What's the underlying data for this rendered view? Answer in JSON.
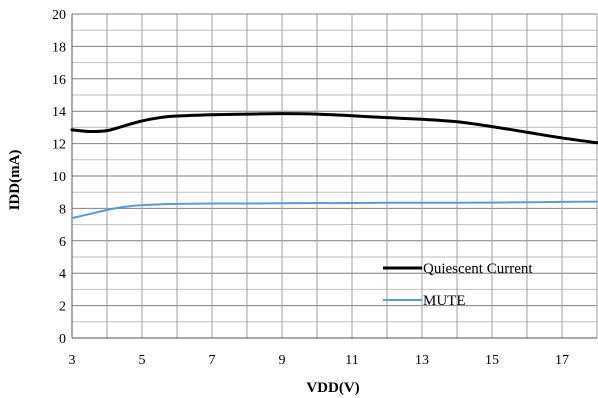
{
  "chart_data": {
    "type": "line",
    "xlabel": "VDD(V)",
    "ylabel": "IDD(mA)",
    "xlim": [
      3,
      18
    ],
    "ylim": [
      0,
      20
    ],
    "x_ticks": [
      "3",
      "5",
      "7",
      "9",
      "11",
      "13",
      "15",
      "17"
    ],
    "y_ticks": [
      "0",
      "2",
      "4",
      "6",
      "8",
      "10",
      "12",
      "14",
      "16",
      "18",
      "20"
    ],
    "grid": true,
    "legend_position": "bottom-right",
    "series": [
      {
        "name": "Quiescent Current",
        "color": "#000000",
        "x": [
          3,
          3.5,
          4,
          4.5,
          5,
          5.5,
          6,
          7,
          8,
          9,
          10,
          11,
          12,
          13,
          14,
          15,
          16,
          17,
          18
        ],
        "y": [
          12.85,
          12.75,
          12.8,
          13.1,
          13.4,
          13.6,
          13.7,
          13.78,
          13.82,
          13.85,
          13.82,
          13.72,
          13.6,
          13.5,
          13.35,
          13.05,
          12.7,
          12.35,
          12.05
        ]
      },
      {
        "name": "MUTE",
        "color": "#5b9bd5",
        "x": [
          3,
          3.5,
          4,
          4.5,
          5,
          5.5,
          6,
          7,
          8,
          9,
          10,
          11,
          12,
          13,
          14,
          15,
          16,
          17,
          18
        ],
        "y": [
          7.4,
          7.65,
          7.9,
          8.1,
          8.2,
          8.25,
          8.28,
          8.3,
          8.3,
          8.32,
          8.33,
          8.33,
          8.35,
          8.35,
          8.35,
          8.36,
          8.38,
          8.4,
          8.42
        ]
      }
    ]
  }
}
